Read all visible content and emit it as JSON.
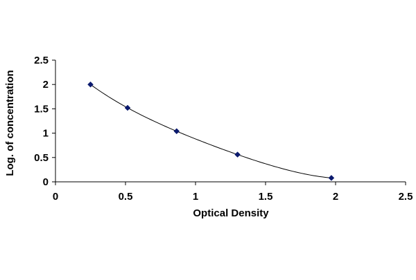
{
  "chart_data": {
    "type": "scatter",
    "title": "",
    "xlabel": "Optical Density",
    "ylabel": "Log. of concentration",
    "xlim": [
      0,
      2.5
    ],
    "ylim": [
      0,
      2.5
    ],
    "xticks": [
      "0",
      "0.5",
      "1",
      "1.5",
      "2",
      "2.5"
    ],
    "yticks": [
      "0",
      "0.5",
      "1",
      "1.5",
      "2",
      "2.5"
    ],
    "grid": false,
    "legend": "none",
    "series": [
      {
        "x": [
          0.25,
          0.515,
          0.865,
          1.3,
          1.97
        ],
        "y": [
          2.0,
          1.52,
          1.04,
          0.56,
          0.08
        ],
        "marker": "diamond",
        "marker_color": "#0b1a6e",
        "fit_line": true,
        "line_color": "#000000"
      }
    ]
  }
}
